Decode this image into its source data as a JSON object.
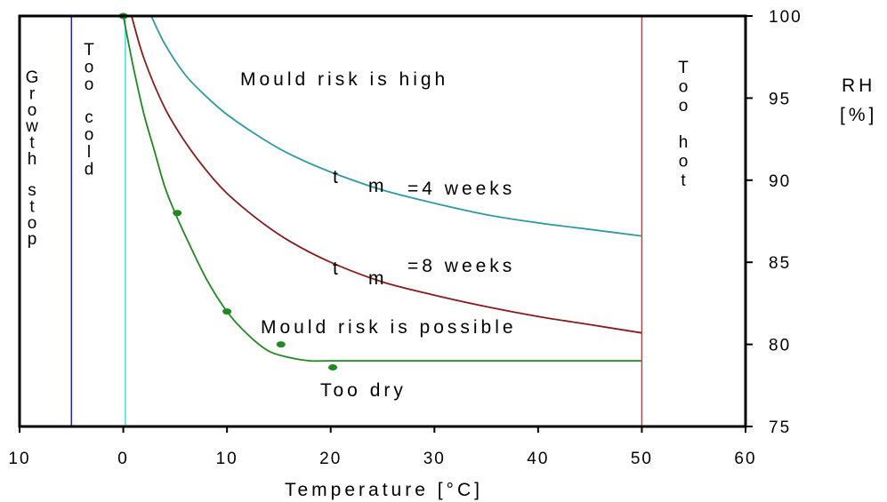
{
  "chart_data": {
    "type": "line",
    "title": "",
    "xlabel": "Temperature [°C]",
    "ylabel": "RH [%]",
    "ylabel_lines": [
      "RH",
      "[%]"
    ],
    "xlim": [
      -10,
      60
    ],
    "ylim": [
      75,
      100
    ],
    "x_tick_labels": [
      "10",
      "0",
      "10",
      "20",
      "30",
      "40",
      "50",
      "60"
    ],
    "x_tick_values": [
      -10,
      0,
      10,
      20,
      30,
      40,
      50,
      60
    ],
    "y_ticks": [
      75,
      80,
      85,
      90,
      95,
      100
    ],
    "grid": false,
    "series": [
      {
        "color": "#2e9aa3",
        "label": [
          "t",
          "m",
          "=4 weeks"
        ],
        "x": [
          2.7,
          4,
          6,
          8,
          10,
          13,
          16,
          20,
          25,
          30,
          35,
          40,
          45,
          50
        ],
        "y": [
          100,
          98.3,
          96.4,
          95.1,
          94.0,
          92.7,
          91.6,
          90.5,
          89.4,
          88.6,
          87.9,
          87.4,
          87.0,
          86.6
        ]
      },
      {
        "color": "#8b1a1a",
        "label": [
          "t",
          "m",
          "=8 weeks"
        ],
        "x": [
          0.8,
          2,
          4,
          6,
          8,
          10,
          13,
          16,
          20,
          25,
          30,
          35,
          40,
          45,
          50
        ],
        "y": [
          100,
          97.4,
          94.4,
          92.3,
          90.6,
          89.2,
          87.6,
          86.3,
          85.0,
          83.8,
          83.0,
          82.3,
          81.7,
          81.2,
          80.7
        ]
      },
      {
        "color": "#1e8a1e",
        "label": [],
        "x": [
          0,
          1,
          2,
          3,
          4,
          5,
          6,
          8,
          10,
          12,
          14,
          16,
          18,
          20,
          30,
          40,
          50
        ],
        "y": [
          100,
          96.8,
          94.0,
          91.8,
          89.6,
          88.0,
          86.6,
          84.0,
          82.0,
          80.6,
          79.6,
          79.2,
          79.0,
          79.0,
          79.0,
          79.0,
          79.0
        ]
      }
    ],
    "markers": [
      {
        "x": 0,
        "y": 100
      },
      {
        "x": 5.2,
        "y": 88.0
      },
      {
        "x": 10,
        "y": 82.0
      },
      {
        "x": 15.2,
        "y": 80.0
      },
      {
        "x": 20.2,
        "y": 78.6
      }
    ],
    "boundary_lines": [
      {
        "x": -5,
        "color": "#2222cc"
      },
      {
        "x": 0.2,
        "color": "#44dddd"
      },
      {
        "x": 50,
        "color": "#dd3333"
      }
    ],
    "annotations": {
      "growth_stop": "Growth stop",
      "too_cold": "Too cold",
      "too_hot": "Too hot",
      "mould_high": "Mould risk is high",
      "mould_possible": "Mould risk is possible",
      "too_dry": "Too dry"
    }
  }
}
